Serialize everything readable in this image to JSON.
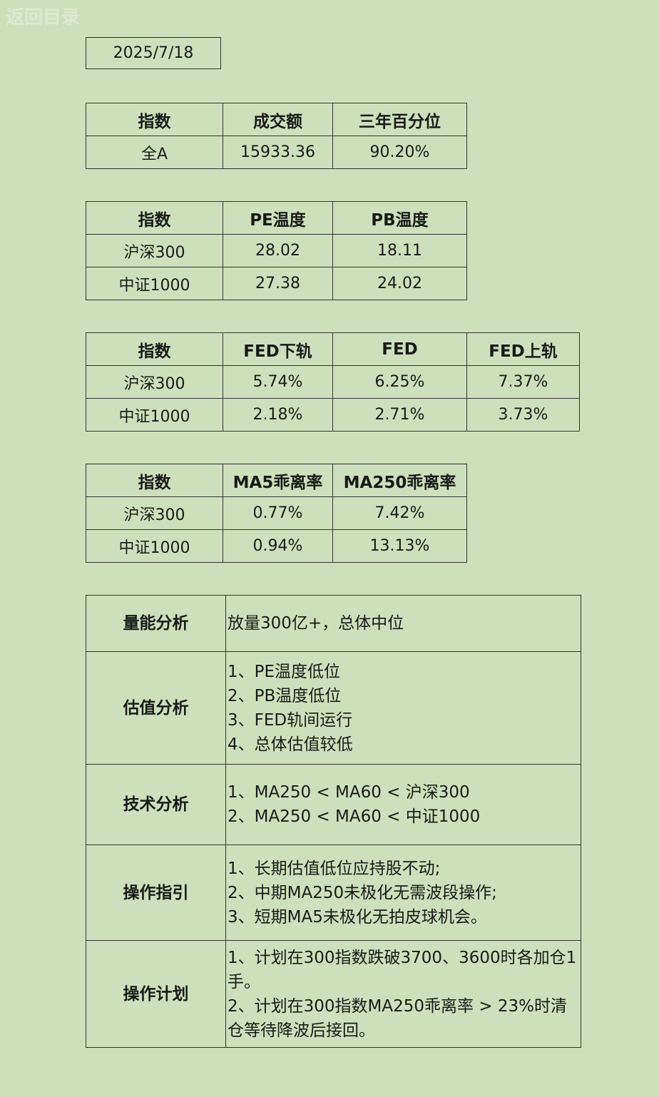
{
  "nav": {
    "back_label": "返回目录"
  },
  "date": "2025/7/18",
  "turnover": {
    "headers": [
      "指数",
      "成交额",
      "三年百分位"
    ],
    "rows": [
      [
        "全A",
        "15933.36",
        "90.20%"
      ]
    ]
  },
  "temperature": {
    "headers": [
      "指数",
      "PE温度",
      "PB温度"
    ],
    "rows": [
      [
        "沪深300",
        "28.02",
        "18.11"
      ],
      [
        "中证1000",
        "27.38",
        "24.02"
      ]
    ]
  },
  "fed": {
    "headers": [
      "指数",
      "FED下轨",
      "FED",
      "FED上轨"
    ],
    "rows": [
      [
        "沪深300",
        "5.74%",
        "6.25%",
        "7.37%"
      ],
      [
        "中证1000",
        "2.18%",
        "2.71%",
        "3.73%"
      ]
    ]
  },
  "ma": {
    "headers": [
      "指数",
      "MA5乖离率",
      "MA250乖离率"
    ],
    "rows": [
      [
        "沪深300",
        "0.77%",
        "7.42%"
      ],
      [
        "中证1000",
        "0.94%",
        "13.13%"
      ]
    ]
  },
  "analysis": [
    {
      "label": "量能分析",
      "lines": [
        "放量300亿+，总体中位"
      ]
    },
    {
      "label": "估值分析",
      "lines": [
        "1、PE温度低位",
        "2、PB温度低位",
        "3、FED轨间运行",
        "4、总体估值较低"
      ]
    },
    {
      "label": "技术分析",
      "lines": [
        "1、MA250 < MA60 < 沪深300",
        "2、MA250 < MA60 < 中证1000"
      ]
    },
    {
      "label": "操作指引",
      "lines": [
        "1、长期估值低位应持股不动;",
        "2、中期MA250未极化无需波段操作;",
        "3、短期MA5未极化无拍皮球机会。"
      ]
    },
    {
      "label": "操作计划",
      "lines": [
        "1、计划在300指数跌破3700、3600时各加仓1手。",
        "2、计划在300指数MA250乖离率 > 23%时清仓等待降波后接回。"
      ]
    }
  ]
}
